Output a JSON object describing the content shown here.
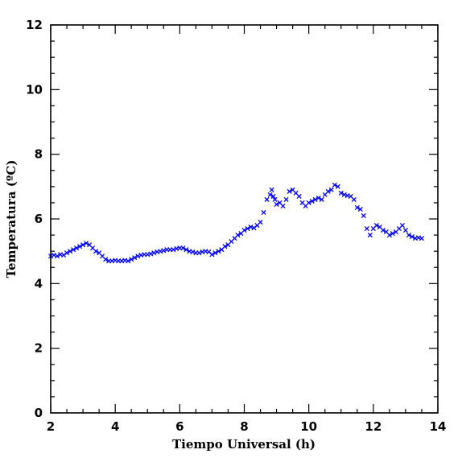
{
  "chart_data": {
    "type": "scatter",
    "title": "",
    "xlabel": "Tiempo Universal (h)",
    "ylabel": "Temperatura (ºC)",
    "xlim": [
      2,
      14
    ],
    "ylim": [
      0,
      12
    ],
    "xticks": [
      2,
      4,
      6,
      8,
      10,
      12,
      14
    ],
    "yticks": [
      0,
      2,
      4,
      6,
      8,
      10,
      12
    ],
    "xtick_labels": [
      "2",
      "4",
      "6",
      "8",
      "10",
      "12",
      "14"
    ],
    "ytick_labels": [
      "0",
      "2",
      "4",
      "6",
      "8",
      "10",
      "12"
    ],
    "marker": "x",
    "grid": false,
    "color": "#0000ff",
    "series": [
      {
        "x": [
          2.0,
          2.1,
          2.2,
          2.3,
          2.4,
          2.5,
          2.6,
          2.7,
          2.8,
          2.9,
          3.0,
          3.1,
          3.2,
          3.3,
          3.4,
          3.5,
          3.6,
          3.7,
          3.8,
          3.9,
          4.0,
          4.1,
          4.2,
          4.3,
          4.4,
          4.5,
          4.6,
          4.7,
          4.8,
          4.9,
          5.0,
          5.1,
          5.2,
          5.3,
          5.4,
          5.5,
          5.6,
          5.7,
          5.8,
          5.9,
          6.0,
          6.1,
          6.2,
          6.3,
          6.4,
          6.5,
          6.6,
          6.7,
          6.8,
          6.9,
          7.0,
          7.1,
          7.2,
          7.3,
          7.4,
          7.5,
          7.6,
          7.7,
          7.8,
          7.9,
          8.0,
          8.1,
          8.2,
          8.3,
          8.4,
          8.5,
          8.6,
          8.7,
          8.8,
          8.85,
          8.9,
          8.95,
          9.0,
          9.1,
          9.2,
          9.3,
          9.4,
          9.5,
          9.6,
          9.7,
          9.8,
          9.9,
          10.0,
          10.1,
          10.2,
          10.3,
          10.4,
          10.5,
          10.6,
          10.7,
          10.8,
          10.9,
          11.0,
          11.1,
          11.2,
          11.3,
          11.4,
          11.5,
          11.6,
          11.7,
          11.8,
          11.9,
          12.0,
          12.1,
          12.2,
          12.3,
          12.4,
          12.5,
          12.6,
          12.7,
          12.8,
          12.9,
          13.0,
          13.1,
          13.2,
          13.3,
          13.4,
          13.5
        ],
        "y": [
          4.85,
          4.88,
          4.85,
          4.9,
          4.88,
          4.95,
          5.0,
          5.05,
          5.1,
          5.15,
          5.2,
          5.25,
          5.2,
          5.1,
          5.0,
          4.95,
          4.85,
          4.75,
          4.7,
          4.7,
          4.72,
          4.7,
          4.7,
          4.72,
          4.7,
          4.75,
          4.8,
          4.85,
          4.88,
          4.9,
          4.9,
          4.92,
          4.95,
          4.98,
          5.0,
          5.02,
          5.05,
          5.05,
          5.05,
          5.08,
          5.1,
          5.1,
          5.05,
          5.0,
          4.98,
          4.95,
          4.95,
          4.98,
          5.0,
          4.98,
          4.9,
          4.95,
          5.0,
          5.05,
          5.15,
          5.2,
          5.3,
          5.4,
          5.5,
          5.55,
          5.65,
          5.7,
          5.75,
          5.72,
          5.8,
          5.9,
          6.2,
          6.6,
          6.75,
          6.9,
          6.7,
          6.6,
          6.45,
          6.5,
          6.4,
          6.6,
          6.85,
          6.9,
          6.8,
          6.7,
          6.5,
          6.4,
          6.5,
          6.55,
          6.6,
          6.65,
          6.6,
          6.75,
          6.85,
          6.9,
          7.05,
          7.0,
          6.8,
          6.75,
          6.72,
          6.7,
          6.6,
          6.35,
          6.3,
          6.1,
          5.7,
          5.5,
          5.7,
          5.8,
          5.75,
          5.65,
          5.6,
          5.5,
          5.55,
          5.6,
          5.7,
          5.8,
          5.65,
          5.5,
          5.45,
          5.4,
          5.42,
          5.4
        ]
      }
    ]
  }
}
